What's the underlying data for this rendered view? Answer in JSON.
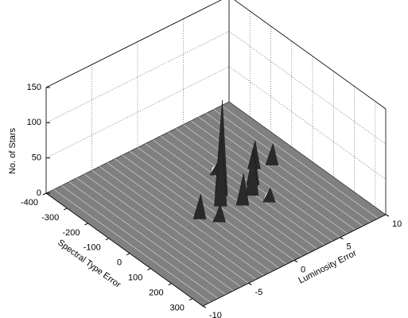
{
  "chart_data": {
    "type": "surface3d",
    "xlabel": "Spectral Type Error",
    "ylabel": "Luminosity Error",
    "zlabel": "No. of Stars",
    "xlim": [
      -400,
      350
    ],
    "ylim": [
      -10,
      10
    ],
    "zlim": [
      0,
      150
    ],
    "xticks": [
      -400,
      -300,
      -200,
      -100,
      0,
      100,
      200,
      300
    ],
    "yticks": [
      -10,
      -5,
      0,
      5,
      10
    ],
    "zticks": [
      0,
      50,
      100,
      150
    ],
    "grid": true,
    "color": "#808080",
    "peaks": {
      "x": [
        -60,
        -20,
        0,
        -40,
        20,
        -100,
        -80,
        40,
        60,
        -150,
        -10
      ],
      "y": [
        1.5,
        0.5,
        3.5,
        4.5,
        2,
        6,
        7.5,
        -1,
        4,
        3,
        -2
      ],
      "z": [
        130,
        90,
        60,
        45,
        40,
        35,
        25,
        20,
        15,
        12,
        30
      ]
    }
  }
}
